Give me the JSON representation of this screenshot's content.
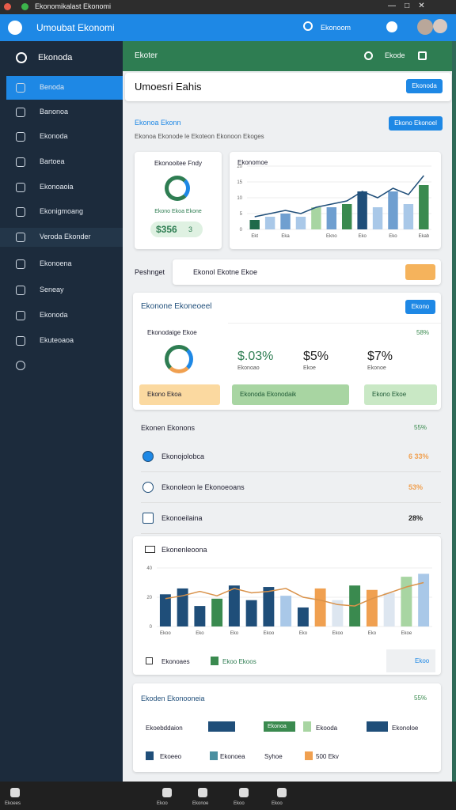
{
  "window": {
    "title": "Ekonomikalast Ekonomi"
  },
  "app_bar": {
    "title": "Umoubat Ekonomi",
    "search": "Ekonoom"
  },
  "sidebar": {
    "header": "Ekonoda",
    "items": [
      "Benoda",
      "Banonoa",
      "Ekonoda",
      "Bartoea",
      "Ekonoaoia",
      "Ekonigmoang",
      "Veroda Ekonder",
      "Ekonoena",
      "Seneay",
      "Ekonoda",
      "Ekuteoaoa"
    ]
  },
  "topbar": {
    "title": "Ekoter",
    "action": "Ekode"
  },
  "page": {
    "title": "Umoesri Eahis",
    "button": "Ekonoda"
  },
  "section1": {
    "title": "Ekonoa Ekonn",
    "subtitle": "Ekonoa Ekonode le Ekoteon Ekonoon Ekoges",
    "button": "Ekono Ekonoel"
  },
  "donut_card": {
    "title": "Ekonooitee Fndy",
    "caption": "Ekono Ekoa Ekone",
    "amount": "$356",
    "badge": "3"
  },
  "chart_1": {
    "type": "bar",
    "title": "Ekonomoe",
    "categories": [
      "Ekt",
      null,
      "Eka",
      null,
      null,
      "Ekno",
      null,
      "Eko",
      null,
      "Eko",
      null,
      "Ekab"
    ],
    "values": [
      3,
      4,
      5,
      4,
      7,
      7,
      8,
      12,
      7,
      12,
      8,
      14
    ],
    "colors": [
      "#1f6a4a",
      "#a9c8e8",
      "#6f9fd0",
      "#a9c8e8",
      "#a8d5a2",
      "#6f9fd0",
      "#3a8a4f",
      "#1f4e79",
      "#a9c8e8",
      "#6f9fd0",
      "#a9c8e8",
      "#3a8a4f"
    ],
    "line_values": [
      4,
      5,
      6,
      5,
      7,
      8,
      9,
      12,
      10,
      13,
      11,
      17
    ],
    "line_color": "#1f4e79",
    "ylim": [
      0,
      20
    ],
    "yticks": [
      0,
      5,
      10,
      15,
      20
    ]
  },
  "filter": {
    "label": "Peshnget",
    "value": "Ekonol Ekotne Ekoe"
  },
  "section2": {
    "title": "Ekonone Ekoneoeel",
    "button": "Ekono",
    "donut_title": "Ekonodaige Ekoe",
    "donut_button": "Ekono Ekoa",
    "corner": "58%",
    "metrics": [
      {
        "value": "$.03%",
        "caption": "Ekonoao"
      },
      {
        "value": "$5%",
        "caption": "Ekoe"
      },
      {
        "value": "$7%",
        "caption": "Ekonoe"
      }
    ],
    "actions": [
      "Ekonoda Ekonodaik",
      "Ekono Ekoe"
    ]
  },
  "list": {
    "title": "Ekonen Ekonons",
    "value": "55%",
    "items": [
      {
        "label": "Ekonojolobca",
        "value": "6 33%"
      },
      {
        "label": "Ekonoleon le Ekonoeoans",
        "value": "53%"
      },
      {
        "label": "Ekonoeilaina",
        "value": "28%"
      }
    ]
  },
  "chart_2": {
    "type": "bar",
    "title": "Ekonenleoona",
    "categories": [
      "Ekoo",
      null,
      "Eko",
      null,
      "Eko",
      null,
      "Ekoo",
      null,
      "Eko",
      null,
      "Ekoo",
      null,
      "Eko",
      null,
      "Ekoe",
      null
    ],
    "values": [
      22,
      26,
      14,
      19,
      28,
      18,
      27,
      21,
      13,
      26,
      18,
      28,
      25,
      23,
      34,
      36
    ],
    "colors": [
      "#1f4e79",
      "#1f4e79",
      "#1f4e79",
      "#3a8a4f",
      "#1f4e79",
      "#1f4e79",
      "#1f4e79",
      "#a9c8e8",
      "#1f4e79",
      "#f0a050",
      "#dde6f0",
      "#3a8a4f",
      "#f0a050",
      "#dde6f0",
      "#a8d5a2",
      "#a9c8e8"
    ],
    "line_values": [
      19,
      21,
      24,
      21,
      26,
      23,
      24,
      26,
      20,
      18,
      15,
      14,
      19,
      23,
      27,
      30
    ],
    "line_color": "#d9924a",
    "ylim": [
      0,
      40
    ],
    "yticks": [
      0,
      20,
      40
    ],
    "legend": [
      "Ekonoaes",
      "Ekoo Ekoos"
    ],
    "button": "Ekoo"
  },
  "bottom_card": {
    "title": "Ekoden Ekonooneia",
    "value": "55%",
    "row1": [
      "Ekoebddaion",
      "Ekonoa",
      "Ekooda",
      "Ekonoloe"
    ],
    "row2": [
      "Ekoeeo",
      "Ekonoea",
      "Syhoe",
      "500 Ekv"
    ]
  },
  "taskbar": [
    "Ekoees",
    "Ekoo",
    "Ekonoe",
    "Ekoo",
    "Ekoo"
  ]
}
